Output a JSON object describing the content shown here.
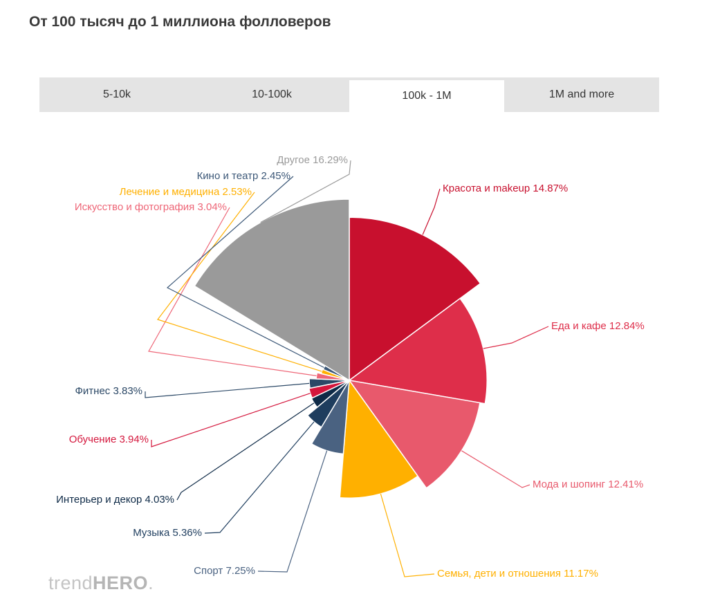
{
  "header": {
    "title": "От 100 тысяч до 1 миллиона фолловеров"
  },
  "tabs": [
    {
      "label": "5-10k",
      "active": false
    },
    {
      "label": "10-100k",
      "active": false
    },
    {
      "label": "100k - 1M",
      "active": true
    },
    {
      "label": "1M and more",
      "active": false
    }
  ],
  "branding": {
    "logo_light": "trend",
    "logo_bold": "HERO",
    "logo_dot": "."
  },
  "chart_data": {
    "type": "pie",
    "variant": "variable-radius",
    "slices": [
      {
        "label": "Красота и makeup",
        "value": 14.87,
        "display": "14.87%",
        "color": "#c8102e"
      },
      {
        "label": "Еда и кафе",
        "value": 12.84,
        "display": "12.84%",
        "color": "#de2e4a"
      },
      {
        "label": "Мода и шопинг",
        "value": 12.41,
        "display": "12.41%",
        "color": "#e8596c"
      },
      {
        "label": "Семья, дети и отношения",
        "value": 11.17,
        "display": "11.17%",
        "color": "#ffb000"
      },
      {
        "label": "Спорт",
        "value": 7.25,
        "display": "7.25%",
        "color": "#4a6281"
      },
      {
        "label": "Музыка",
        "value": 5.36,
        "display": "5.36%",
        "color": "#1e3d5e"
      },
      {
        "label": "Интерьер и декор",
        "value": 4.03,
        "display": "4.03%",
        "color": "#0e2a47"
      },
      {
        "label": "Обучение",
        "value": 3.94,
        "display": "3.94%",
        "color": "#d4163c"
      },
      {
        "label": "Фитнес",
        "value": 3.83,
        "display": "3.83%",
        "color": "#2b4866"
      },
      {
        "label": "Искусство и фотография",
        "value": 3.04,
        "display": "3.04%",
        "color": "#ee6677"
      },
      {
        "label": "Лечение и медицина",
        "value": 2.53,
        "display": "2.53%",
        "color": "#ffb000"
      },
      {
        "label": "Кино и театр",
        "value": 2.45,
        "display": "2.45%",
        "color": "#3b5777"
      },
      {
        "label": "Другое",
        "value": 16.29,
        "display": "16.29%",
        "color": "#9a9a9a"
      }
    ]
  }
}
